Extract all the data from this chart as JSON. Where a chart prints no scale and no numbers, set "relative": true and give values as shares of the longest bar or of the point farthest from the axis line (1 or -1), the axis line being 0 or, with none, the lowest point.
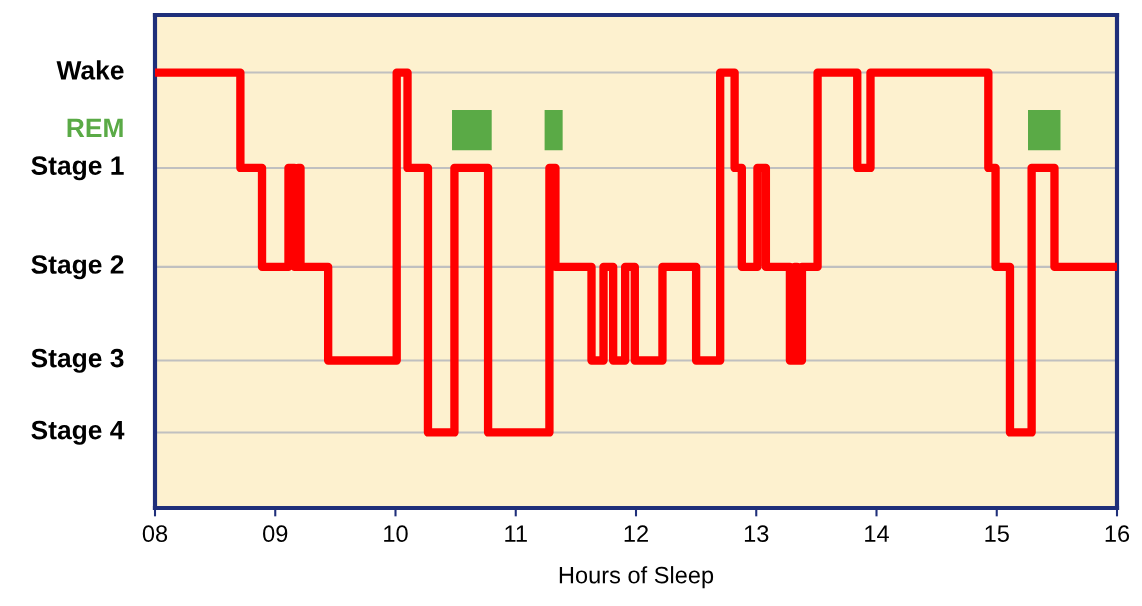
{
  "chart_data": {
    "type": "step",
    "xlabel": "Hours of Sleep",
    "relative": true,
    "xlim": [
      8,
      16
    ],
    "xticks": [
      {
        "value": 8,
        "label": "08"
      },
      {
        "value": 9,
        "label": "09"
      },
      10,
      11,
      12,
      13,
      14,
      15,
      16
    ],
    "ref_lines": [
      {
        "axis": "y",
        "value": 1,
        "label": "Wake",
        "color": "#c0c0c0"
      },
      {
        "axis": "y",
        "value": 0.735,
        "label": "Stage 1",
        "color": "#c0c0c0"
      },
      {
        "axis": "y",
        "value": 0.46,
        "label": "Stage 2",
        "color": "#c0c0c0"
      },
      {
        "axis": "y",
        "value": 0.2,
        "label": "Stage 3",
        "color": "#c0c0c0"
      },
      {
        "axis": "y",
        "value": 0,
        "label": "Stage 4",
        "color": "#c0c0c0"
      }
    ],
    "series": [
      {
        "type": "line",
        "name": "REM",
        "color": "#5aaa46",
        "x": [
          10.47,
          10.8,
          10.81,
          11.24,
          11.39,
          11.4,
          15.26,
          15.53
        ],
        "values": [
          0.84,
          0.84,
          null,
          0.84,
          0.84,
          null,
          0.84,
          0.84
        ]
      },
      {
        "color": "#ff0000",
        "x": [
          8,
          8.71,
          8.89,
          9.11,
          9.16,
          9.19,
          9.21,
          9.44,
          10.01,
          10.1,
          10.27,
          10.49,
          10.77,
          11.28,
          11.33,
          11.63,
          11.73,
          11.81,
          11.91,
          11.99,
          12.22,
          12.5,
          12.7,
          12.82,
          12.88,
          13.01,
          13.08,
          13.28,
          13.32,
          13.34,
          13.38,
          13.51,
          13.84,
          13.95,
          14.93,
          14.99,
          15.11,
          15.29,
          15.48,
          16
        ],
        "values": [
          1,
          0.735,
          0.46,
          0.735,
          0.46,
          0.735,
          0.46,
          0.2,
          1,
          0.735,
          0,
          0.735,
          0,
          0.735,
          0.46,
          0.2,
          0.46,
          0.2,
          0.46,
          0.2,
          0.46,
          0.2,
          1,
          0.735,
          0.46,
          0.735,
          0.46,
          0.2,
          0.46,
          0.2,
          0.46,
          1,
          0.735,
          1,
          0.735,
          0.46,
          0,
          0.735,
          0.46,
          0.46
        ]
      }
    ],
    "grid": false,
    "legend": false
  }
}
